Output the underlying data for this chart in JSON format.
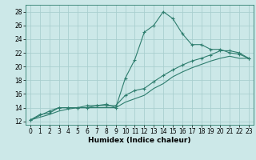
{
  "title": "",
  "xlabel": "Humidex (Indice chaleur)",
  "ylabel": "",
  "bg_color": "#cce8e8",
  "grid_color": "#aacfcf",
  "line_color": "#2e7d6e",
  "xlim": [
    -0.5,
    23.5
  ],
  "ylim": [
    11.5,
    29.0
  ],
  "xticks": [
    0,
    1,
    2,
    3,
    4,
    5,
    6,
    7,
    8,
    9,
    10,
    11,
    12,
    13,
    14,
    15,
    16,
    17,
    18,
    19,
    20,
    21,
    22,
    23
  ],
  "yticks": [
    12,
    14,
    16,
    18,
    20,
    22,
    24,
    26,
    28
  ],
  "line1_x": [
    0,
    1,
    2,
    3,
    4,
    5,
    6,
    7,
    8,
    9,
    10,
    11,
    12,
    13,
    14,
    15,
    16,
    17,
    18,
    19,
    20,
    21,
    22,
    23
  ],
  "line1_y": [
    12.2,
    13.0,
    13.2,
    14.0,
    14.0,
    14.0,
    14.0,
    14.3,
    14.5,
    14.0,
    18.3,
    21.0,
    25.0,
    26.0,
    28.0,
    27.0,
    24.8,
    23.2,
    23.2,
    22.5,
    22.5,
    22.0,
    21.8,
    21.2
  ],
  "line2_x": [
    0,
    2,
    3,
    4,
    5,
    6,
    7,
    8,
    9,
    10,
    11,
    12,
    13,
    14,
    15,
    16,
    17,
    18,
    19,
    20,
    21,
    22,
    23
  ],
  "line2_y": [
    12.2,
    13.5,
    14.0,
    14.0,
    14.0,
    14.3,
    14.3,
    14.3,
    14.3,
    15.8,
    16.5,
    16.8,
    17.8,
    18.7,
    19.5,
    20.2,
    20.8,
    21.2,
    21.7,
    22.3,
    22.3,
    22.0,
    21.2
  ],
  "line3_x": [
    0,
    2,
    3,
    4,
    5,
    6,
    7,
    8,
    9,
    10,
    11,
    12,
    13,
    14,
    15,
    16,
    17,
    18,
    19,
    20,
    21,
    22,
    23
  ],
  "line3_y": [
    12.2,
    13.0,
    13.5,
    13.8,
    14.0,
    14.0,
    14.0,
    14.0,
    14.0,
    14.8,
    15.3,
    15.8,
    16.8,
    17.5,
    18.5,
    19.2,
    19.8,
    20.3,
    20.8,
    21.2,
    21.5,
    21.2,
    21.2
  ],
  "marker_size": 3,
  "lw": 0.8,
  "tick_fontsize": 5.5,
  "xlabel_fontsize": 6.5
}
